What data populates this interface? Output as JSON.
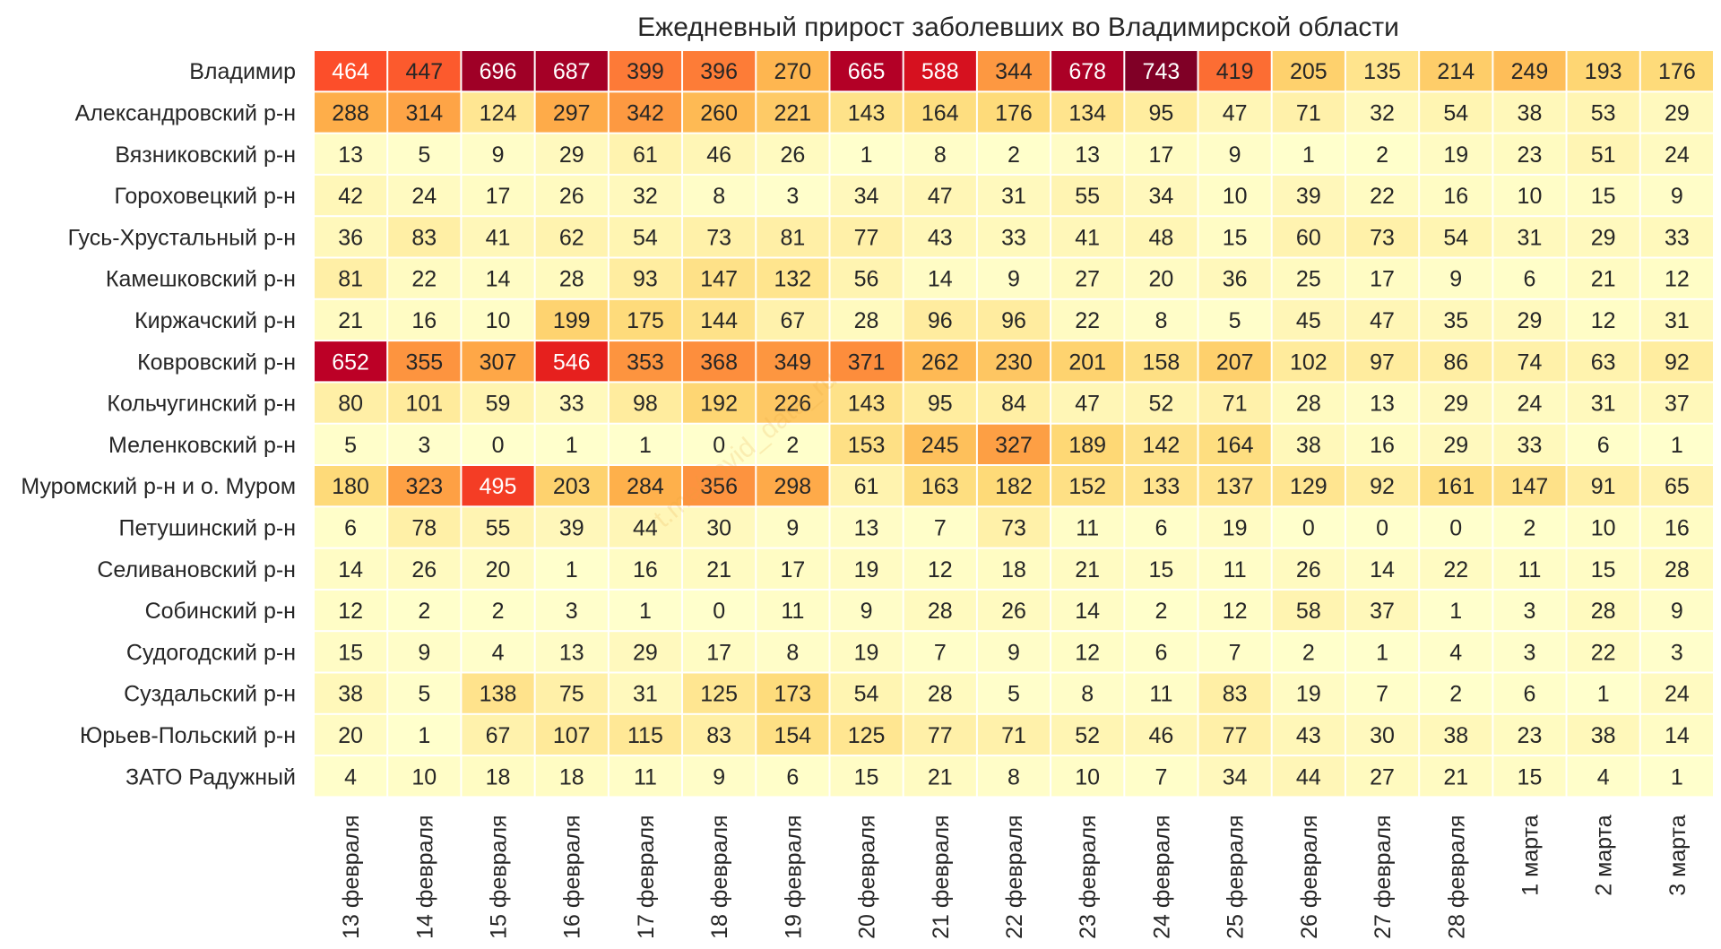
{
  "chart_data": {
    "type": "heatmap",
    "title": "Ежедневный прирост заболевших во Владимирской области",
    "watermark": "t.me/covid_data_ru",
    "colormap": "YlOrRd",
    "vmin": 0,
    "vmax": 743,
    "rows": [
      "Владимир",
      "Александровский р-н",
      "Вязниковский р-н",
      "Гороховецкий р-н",
      "Гусь-Хрустальный р-н",
      "Камешковский р-н",
      "Киржачский р-н",
      "Ковровский р-н",
      "Кольчугинский р-н",
      "Меленковский р-н",
      "Муромский р-н и о. Муром",
      "Петушинский р-н",
      "Селивановский р-н",
      "Собинский р-н",
      "Судогодский р-н",
      "Суздальский р-н",
      "Юрьев-Польский р-н",
      "ЗАТО Радужный"
    ],
    "columns": [
      "13 февраля",
      "14 февраля",
      "15 февраля",
      "16 февраля",
      "17 февраля",
      "18 февраля",
      "19 февраля",
      "20 февраля",
      "21 февраля",
      "22 февраля",
      "23 февраля",
      "24 февраля",
      "25 февраля",
      "26 февраля",
      "27 февраля",
      "28 февраля",
      "1 марта",
      "2 марта",
      "3 марта"
    ],
    "values": [
      [
        464,
        447,
        696,
        687,
        399,
        396,
        270,
        665,
        588,
        344,
        678,
        743,
        419,
        205,
        135,
        214,
        249,
        193,
        176
      ],
      [
        288,
        314,
        124,
        297,
        342,
        260,
        221,
        143,
        164,
        176,
        134,
        95,
        47,
        71,
        32,
        54,
        38,
        53,
        29
      ],
      [
        13,
        5,
        9,
        29,
        61,
        46,
        26,
        1,
        8,
        2,
        13,
        17,
        9,
        1,
        2,
        19,
        23,
        51,
        24
      ],
      [
        42,
        24,
        17,
        26,
        32,
        8,
        3,
        34,
        47,
        31,
        55,
        34,
        10,
        39,
        22,
        16,
        10,
        15,
        9
      ],
      [
        36,
        83,
        41,
        62,
        54,
        73,
        81,
        77,
        43,
        33,
        41,
        48,
        15,
        60,
        73,
        54,
        31,
        29,
        33
      ],
      [
        81,
        22,
        14,
        28,
        93,
        147,
        132,
        56,
        14,
        9,
        27,
        20,
        36,
        25,
        17,
        9,
        6,
        21,
        12
      ],
      [
        21,
        16,
        10,
        199,
        175,
        144,
        67,
        28,
        96,
        96,
        22,
        8,
        5,
        45,
        47,
        35,
        29,
        12,
        31
      ],
      [
        652,
        355,
        307,
        546,
        353,
        368,
        349,
        371,
        262,
        230,
        201,
        158,
        207,
        102,
        97,
        86,
        74,
        63,
        92
      ],
      [
        80,
        101,
        59,
        33,
        98,
        192,
        226,
        143,
        95,
        84,
        47,
        52,
        71,
        28,
        13,
        29,
        24,
        31,
        37
      ],
      [
        5,
        3,
        0,
        1,
        1,
        0,
        2,
        153,
        245,
        327,
        189,
        142,
        164,
        38,
        16,
        29,
        33,
        6,
        1
      ],
      [
        180,
        323,
        495,
        203,
        284,
        356,
        298,
        61,
        163,
        182,
        152,
        133,
        137,
        129,
        92,
        161,
        147,
        91,
        65
      ],
      [
        6,
        78,
        55,
        39,
        44,
        30,
        9,
        13,
        7,
        73,
        11,
        6,
        19,
        0,
        0,
        0,
        2,
        10,
        16
      ],
      [
        14,
        26,
        20,
        1,
        16,
        21,
        17,
        19,
        12,
        18,
        21,
        15,
        11,
        26,
        14,
        22,
        11,
        15,
        28
      ],
      [
        12,
        2,
        2,
        3,
        1,
        0,
        11,
        9,
        28,
        26,
        14,
        2,
        12,
        58,
        37,
        1,
        3,
        28,
        9
      ],
      [
        15,
        9,
        4,
        13,
        29,
        17,
        8,
        19,
        7,
        9,
        12,
        6,
        7,
        2,
        1,
        4,
        3,
        22,
        3
      ],
      [
        38,
        5,
        138,
        75,
        31,
        125,
        173,
        54,
        28,
        5,
        8,
        11,
        83,
        19,
        7,
        2,
        6,
        1,
        24
      ],
      [
        20,
        1,
        67,
        107,
        115,
        83,
        154,
        125,
        77,
        71,
        52,
        46,
        77,
        43,
        30,
        38,
        23,
        38,
        14
      ],
      [
        4,
        10,
        18,
        18,
        11,
        9,
        6,
        15,
        21,
        8,
        10,
        7,
        34,
        44,
        27,
        21,
        15,
        4,
        1
      ]
    ]
  }
}
